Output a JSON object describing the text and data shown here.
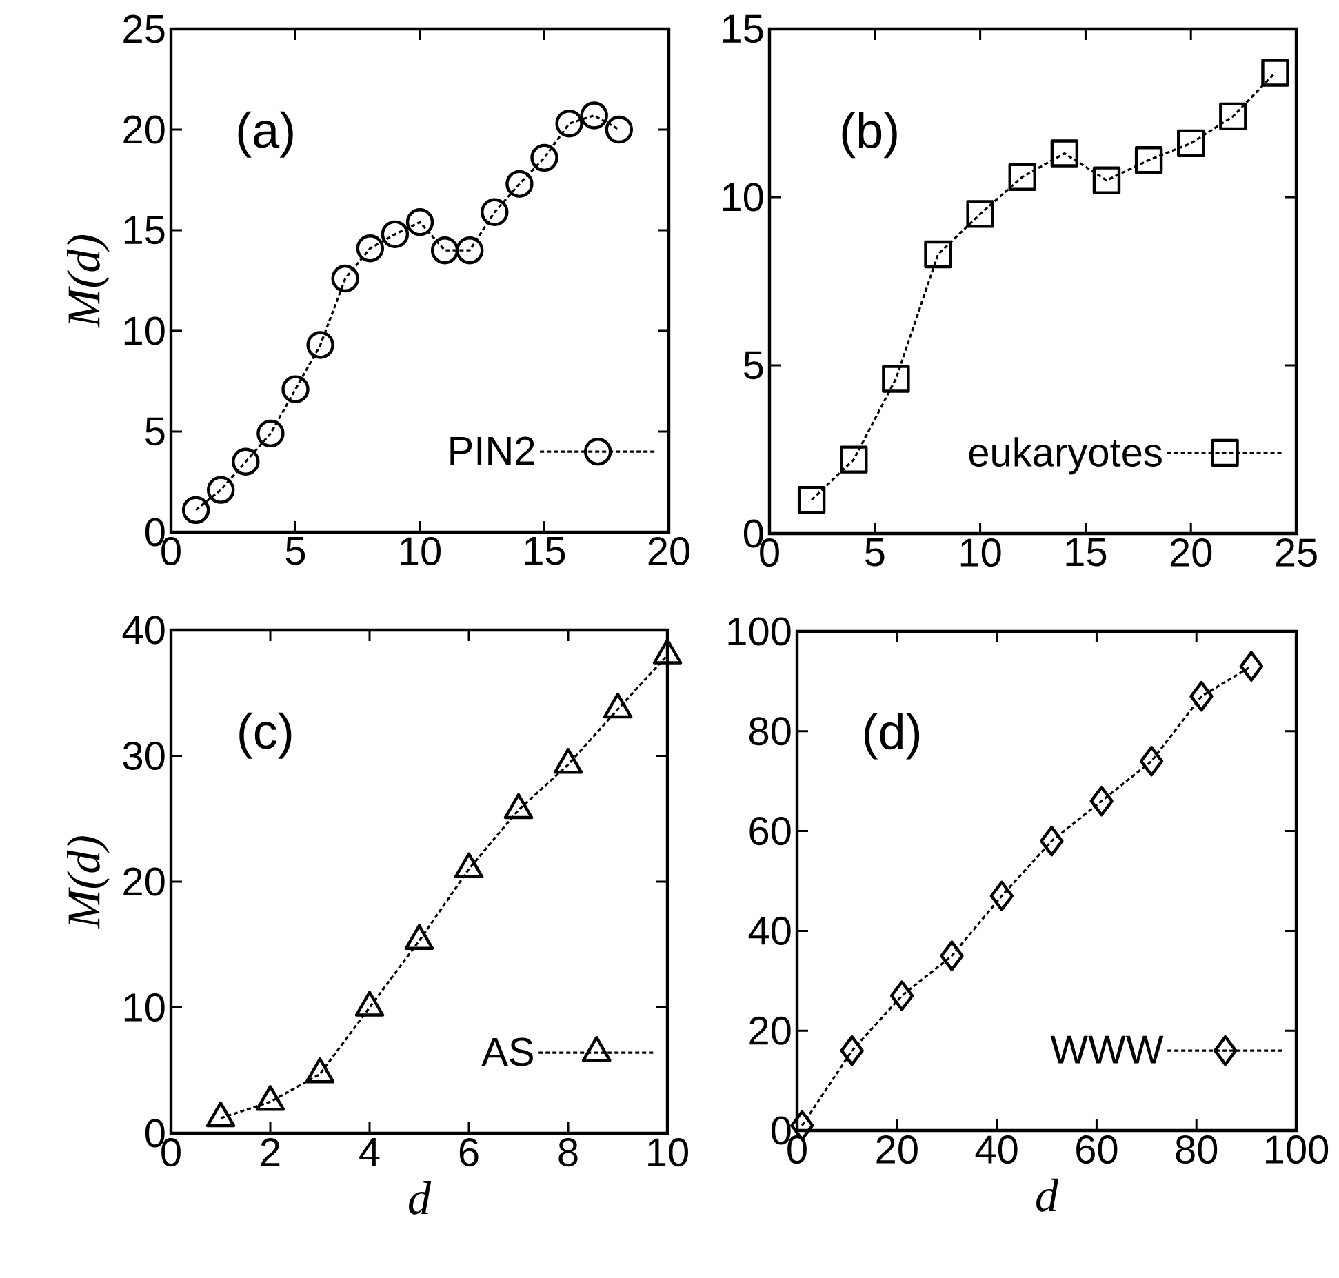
{
  "chart_data": [
    {
      "type": "line",
      "ylabel": "M(d)",
      "annotations": [
        "(a)"
      ],
      "x": [
        1,
        2,
        3,
        4,
        5,
        6,
        7,
        8,
        9,
        10,
        11,
        12,
        13,
        14,
        15,
        16,
        17,
        18
      ],
      "series": [
        {
          "name": "PIN2",
          "color": "#000000",
          "values": [
            1.1,
            2.1,
            3.5,
            4.9,
            7.1,
            9.3,
            12.6,
            14.1,
            14.8,
            15.4,
            14.0,
            14.0,
            15.9,
            17.3,
            18.6,
            20.3,
            20.7,
            20.0
          ]
        }
      ],
      "xlim": [
        0,
        20
      ],
      "xticks": [
        0,
        5,
        10,
        15,
        20
      ],
      "ylim": [
        0,
        25
      ],
      "yticks": [
        0,
        5,
        10,
        15,
        20,
        25
      ],
      "grid": false,
      "legend": "bottom right",
      "marker": "circle",
      "line_style": "dashed"
    },
    {
      "type": "line",
      "annotations": [
        "(b)"
      ],
      "x": [
        2,
        4,
        6,
        8,
        10,
        12,
        14,
        16,
        18,
        20,
        22,
        24
      ],
      "series": [
        {
          "name": "eukaryotes",
          "color": "#000000",
          "values": [
            1.0,
            2.2,
            4.6,
            8.3,
            9.5,
            10.6,
            11.3,
            10.5,
            11.1,
            11.6,
            12.4,
            13.7
          ]
        }
      ],
      "xlim": [
        0,
        25
      ],
      "xticks": [
        0,
        5,
        10,
        15,
        20,
        25
      ],
      "ylim": [
        0,
        15
      ],
      "yticks": [
        0,
        5,
        10,
        15
      ],
      "grid": false,
      "legend": "bottom right",
      "marker": "square",
      "line_style": "dashed"
    },
    {
      "type": "line",
      "xlabel": "d",
      "ylabel": "M(d)",
      "annotations": [
        "(c)"
      ],
      "x": [
        1,
        2,
        3,
        4,
        5,
        6,
        7,
        8,
        9,
        10
      ],
      "series": [
        {
          "name": "AS",
          "color": "#000000",
          "values": [
            1.2,
            2.5,
            4.7,
            10.0,
            15.3,
            21.0,
            25.7,
            29.3,
            33.7,
            38.0
          ]
        }
      ],
      "xlim": [
        0,
        10
      ],
      "xticks": [
        0,
        2,
        4,
        6,
        8,
        10
      ],
      "ylim": [
        0,
        40
      ],
      "yticks": [
        0,
        10,
        20,
        30,
        40
      ],
      "grid": false,
      "legend": "bottom right",
      "marker": "triangle",
      "line_style": "dashed"
    },
    {
      "type": "line",
      "xlabel": "d",
      "annotations": [
        "(d)"
      ],
      "x": [
        1,
        11,
        21,
        31,
        41,
        51,
        61,
        71,
        81,
        91
      ],
      "series": [
        {
          "name": "WWW",
          "color": "#000000",
          "values": [
            1,
            16,
            27,
            35,
            47,
            58,
            66,
            74,
            87,
            93
          ]
        }
      ],
      "xlim": [
        0,
        100
      ],
      "xticks": [
        0,
        20,
        40,
        60,
        80,
        100
      ],
      "ylim": [
        0,
        100
      ],
      "yticks": [
        0,
        20,
        40,
        60,
        80,
        100
      ],
      "grid": false,
      "legend": "bottom right",
      "marker": "diamond",
      "line_style": "dashed"
    }
  ]
}
